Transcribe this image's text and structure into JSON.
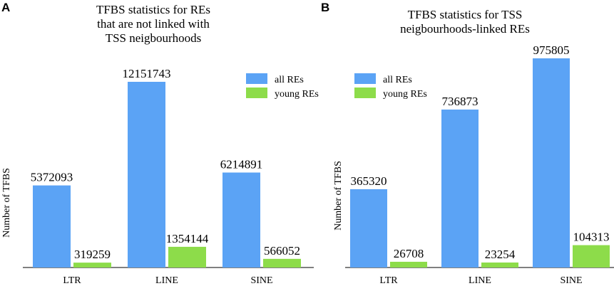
{
  "chart_data": [
    {
      "panel": "A",
      "type": "bar",
      "title": [
        "TFBS statistics for REs",
        "that are not linked with",
        "TSS neigbourhoods"
      ],
      "xlabel": "",
      "ylabel": "Number of TFBS",
      "categories": [
        "LTR",
        "LINE",
        "SINE"
      ],
      "ylim": [
        0,
        13000000
      ],
      "series": [
        {
          "name": "all REs",
          "color": "#5ba3f5",
          "values": [
            5372093,
            12151743,
            6214891
          ]
        },
        {
          "name": "young REs",
          "color": "#8ddc4a",
          "values": [
            319259,
            1354144,
            566052
          ]
        }
      ],
      "legend": "top-right"
    },
    {
      "panel": "B",
      "type": "bar",
      "title": [
        "TFBS statistics for TSS",
        "neigbourhoods-linked REs"
      ],
      "xlabel": "",
      "ylabel": "Number of TFBS",
      "categories": [
        "LTR",
        "LINE",
        "SINE"
      ],
      "ylim": [
        0,
        1000000
      ],
      "series": [
        {
          "name": "all REs",
          "color": "#5ba3f5",
          "values": [
            365320,
            736873,
            975805
          ]
        },
        {
          "name": "young REs",
          "color": "#8ddc4a",
          "values": [
            26708,
            23254,
            104313
          ]
        }
      ],
      "legend": "top-left"
    }
  ]
}
